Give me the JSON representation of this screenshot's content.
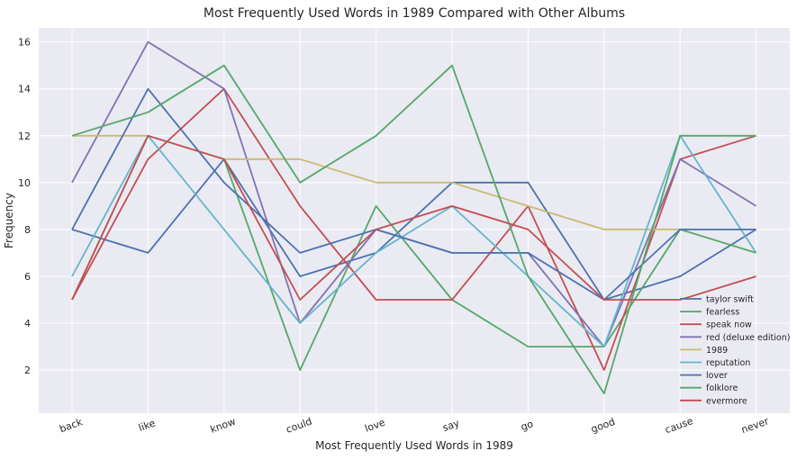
{
  "chart_data": {
    "type": "line",
    "title": "Most Frequently Used Words in 1989 Compared with Other Albums",
    "xlabel": "Most Frequently Used Words in 1989",
    "ylabel": "Frequency",
    "categories": [
      "back",
      "like",
      "know",
      "could",
      "love",
      "say",
      "go",
      "good",
      "cause",
      "never"
    ],
    "ylim": [
      0.16,
      16.6
    ],
    "yticks": [
      2,
      4,
      6,
      8,
      10,
      12,
      14,
      16
    ],
    "grid": true,
    "legend_position": "lower-right",
    "series": [
      {
        "name": "taylor swift",
        "color": "#4c72b0",
        "values": [
          8,
          7,
          11,
          6,
          7,
          10,
          10,
          5,
          6,
          8
        ]
      },
      {
        "name": "fearless",
        "color": "#55a868",
        "values": [
          5,
          12,
          11,
          2,
          9,
          5,
          3,
          3,
          8,
          7
        ]
      },
      {
        "name": "speak now",
        "color": "#c44e52",
        "values": [
          5,
          11,
          14,
          9,
          5,
          5,
          9,
          2,
          11,
          12
        ]
      },
      {
        "name": "red (deluxe edition)",
        "color": "#8172b2",
        "values": [
          10,
          16,
          14,
          4,
          8,
          7,
          7,
          3,
          11,
          9
        ]
      },
      {
        "name": "1989",
        "color": "#ccb974",
        "values": [
          12,
          12,
          11,
          11,
          10,
          10,
          9,
          8,
          8,
          8
        ]
      },
      {
        "name": "reputation",
        "color": "#64b5cd",
        "values": [
          6,
          12,
          8,
          4,
          7,
          9,
          6,
          3,
          12,
          7
        ]
      },
      {
        "name": "lover",
        "color": "#4c72b0",
        "values": [
          8,
          14,
          10,
          7,
          8,
          7,
          7,
          5,
          8,
          8
        ]
      },
      {
        "name": "folklore",
        "color": "#55a868",
        "values": [
          12,
          13,
          15,
          10,
          12,
          15,
          6,
          1,
          12,
          12
        ]
      },
      {
        "name": "evermore",
        "color": "#c44e52",
        "values": [
          5,
          12,
          11,
          5,
          8,
          9,
          8,
          5,
          5,
          6
        ]
      }
    ]
  }
}
